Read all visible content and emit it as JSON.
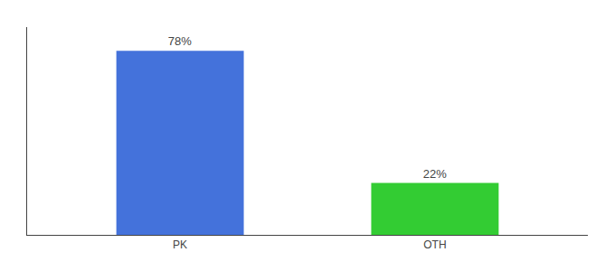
{
  "chart_data": {
    "type": "bar",
    "categories": [
      "PK",
      "OTH"
    ],
    "values": [
      78,
      22
    ],
    "value_labels": [
      "78%",
      "22%"
    ],
    "colors": [
      "#4472db",
      "#33cc33"
    ],
    "data_labels": true,
    "ylim": [
      0,
      88
    ],
    "grid": false,
    "tick_labels": "x"
  }
}
